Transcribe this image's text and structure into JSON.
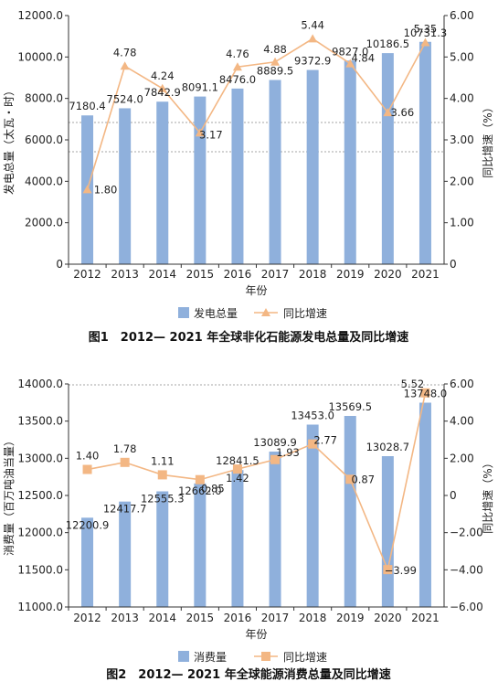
{
  "colors": {
    "bar": "#8fb0dc",
    "line": "#f3b784",
    "axis": "#333333",
    "refline": "#888888"
  },
  "chart_data": [
    {
      "type": "bar",
      "title": "",
      "caption": "图1　2012— 2021 年全球非化石能源发电总量及同比增速",
      "categories": [
        "2012",
        "2013",
        "2014",
        "2015",
        "2016",
        "2017",
        "2018",
        "2019",
        "2020",
        "2021"
      ],
      "xlabel": "年份",
      "ylabel": "发电总量（太瓦・时）",
      "y2label": "同比增速（%）",
      "ylim": [
        0,
        12000
      ],
      "y_ticks": [
        "0",
        "2000.0",
        "4000.0",
        "6000.0",
        "8000.0",
        "10000.0",
        "12000.0"
      ],
      "y2lim": [
        0,
        6
      ],
      "y2_ticks": [
        "0",
        "1.00",
        "2.00",
        "3.00",
        "4.00",
        "5.00",
        "6.00"
      ],
      "series": [
        {
          "name": "发电总量",
          "type": "bar",
          "values": [
            7180.4,
            7524.0,
            7842.9,
            8091.1,
            8476.0,
            8889.5,
            9372.9,
            9827.0,
            10186.5,
            10731.3
          ],
          "labels": [
            "7180.4",
            "7524.0",
            "7842.9",
            "8091.1",
            "8476.0",
            "8889.5",
            "9372.9",
            "9827.0",
            "10186.5",
            "10731.3"
          ]
        },
        {
          "name": "同比增速",
          "type": "line",
          "axis": "right",
          "marker": "triangle",
          "values": [
            1.8,
            4.78,
            4.24,
            3.17,
            4.76,
            4.88,
            5.44,
            4.84,
            3.66,
            5.35
          ],
          "labels": [
            "1.80",
            "4.78",
            "4.24",
            "3.17",
            "4.76",
            "4.88",
            "5.44",
            "4.84",
            "3.66",
            "5.35"
          ]
        }
      ],
      "grid": false,
      "legend": "bottom"
    },
    {
      "type": "bar",
      "title": "",
      "caption": "图2　2012— 2021 年全球能源消费总量及同比增速",
      "categories": [
        "2012",
        "2013",
        "2014",
        "2015",
        "2016",
        "2017",
        "2018",
        "2019",
        "2020",
        "2021"
      ],
      "xlabel": "年份",
      "ylabel": "消费量（百万吨油当量）",
      "y2label": "同比增速（%）",
      "ylim": [
        11000,
        14000
      ],
      "y_ticks": [
        "11000.0",
        "11500.0",
        "12000.0",
        "12500.0",
        "13000.0",
        "13500.0",
        "14000.0"
      ],
      "y2lim": [
        -6,
        6
      ],
      "y2_ticks": [
        "−6.00",
        "−4.00",
        "−2.00",
        "0",
        "2.00",
        "4.00",
        "6.00"
      ],
      "series": [
        {
          "name": "消费量",
          "type": "bar",
          "values": [
            12200.9,
            12417.7,
            12555.3,
            12662.0,
            12841.5,
            13089.9,
            13453.0,
            13569.5,
            13028.7,
            13748.0
          ],
          "labels": [
            "12200.9",
            "12417.7",
            "12555.3",
            "12662.0",
            "12841.5",
            "13089.9",
            "13453.0",
            "13569.5",
            "13028.7",
            "13748.0"
          ]
        },
        {
          "name": "同比增速",
          "type": "line",
          "axis": "right",
          "marker": "square",
          "values": [
            1.4,
            1.78,
            1.11,
            0.85,
            1.42,
            1.93,
            2.77,
            0.87,
            -3.99,
            5.52
          ],
          "labels": [
            "1.40",
            "1.78",
            "1.11",
            "0.85",
            "1.42",
            "1.93",
            "2.77",
            "0.87",
            "−3.99",
            "5.52"
          ]
        }
      ],
      "grid": false,
      "legend": "bottom"
    }
  ]
}
